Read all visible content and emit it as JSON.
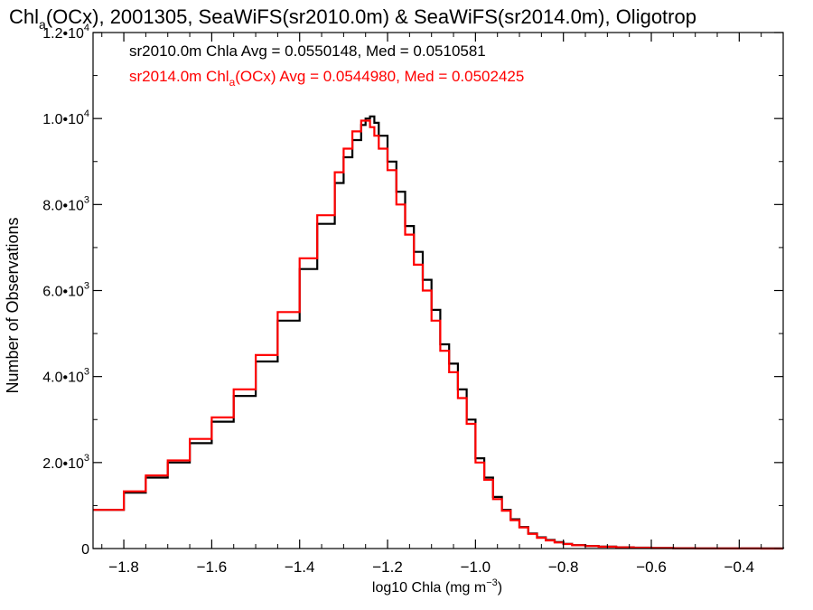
{
  "chart_data": {
    "type": "line",
    "title": {
      "pre": "Chl",
      "sub": "a",
      "post": "(OCx), 2001305, SeaWiFS(sr2010.0m) & SeaWiFS(sr2014.0m), Oligotrop"
    },
    "xlabel": {
      "pre": "log10 Chla (mg m",
      "sup": "−3",
      "post": ")"
    },
    "ylabel": "Number of Observations",
    "xlim": [
      -1.87,
      -0.3
    ],
    "ylim": [
      0,
      12000
    ],
    "x_ticks": [
      -1.8,
      -1.6,
      -1.4,
      -1.2,
      -1.0,
      -0.8,
      -0.6,
      -0.4
    ],
    "x_tick_labels": [
      "−1.8",
      "−1.6",
      "−1.4",
      "−1.2",
      "−1.0",
      "−0.8",
      "−0.6",
      "−0.4"
    ],
    "y_ticks": [
      {
        "value": 0,
        "mant": "0",
        "exp": ""
      },
      {
        "value": 2000,
        "mant": "2.0•10",
        "exp": "3"
      },
      {
        "value": 4000,
        "mant": "4.0•10",
        "exp": "3"
      },
      {
        "value": 6000,
        "mant": "6.0•10",
        "exp": "3"
      },
      {
        "value": 8000,
        "mant": "8.0•10",
        "exp": "3"
      },
      {
        "value": 10000,
        "mant": "1.0•10",
        "exp": "4"
      },
      {
        "value": 12000,
        "mant": "1.2•10",
        "exp": "4"
      }
    ],
    "legend": [
      {
        "pre": "sr2010.0m Chla Avg = 0.0550148, Med = 0.0510581",
        "sub": "",
        "post": "",
        "color": "#000000"
      },
      {
        "pre": "sr2014.0m Chl",
        "sub": "a",
        "post": "(OCx) Avg = 0.0544980, Med = 0.0502425",
        "color": "#ff0000"
      }
    ],
    "legend_position": "top-left",
    "grid": false,
    "series": [
      {
        "color": "#000000",
        "x": [
          -1.87,
          -1.8,
          -1.75,
          -1.7,
          -1.65,
          -1.6,
          -1.55,
          -1.5,
          -1.45,
          -1.4,
          -1.36,
          -1.32,
          -1.3,
          -1.28,
          -1.26,
          -1.25,
          -1.24,
          -1.23,
          -1.22,
          -1.2,
          -1.18,
          -1.16,
          -1.14,
          -1.12,
          -1.1,
          -1.08,
          -1.06,
          -1.04,
          -1.02,
          -1.0,
          -0.98,
          -0.96,
          -0.94,
          -0.92,
          -0.9,
          -0.88,
          -0.86,
          -0.84,
          -0.82,
          -0.8,
          -0.78,
          -0.75,
          -0.72,
          -0.68,
          -0.64,
          -0.6,
          -0.55,
          -0.5,
          -0.45,
          -0.4,
          -0.35,
          -0.3
        ],
        "y": [
          900,
          1300,
          1650,
          2000,
          2450,
          2950,
          3550,
          4350,
          5300,
          6500,
          7550,
          8500,
          9100,
          9500,
          9850,
          10000,
          10050,
          9900,
          9600,
          9000,
          8300,
          7500,
          6900,
          6250,
          5550,
          4750,
          4300,
          3700,
          3000,
          2100,
          1650,
          1200,
          900,
          680,
          500,
          350,
          260,
          200,
          150,
          110,
          80,
          60,
          45,
          30,
          20,
          12,
          8,
          5,
          4,
          3,
          2,
          1
        ]
      },
      {
        "color": "#ff0000",
        "x": [
          -1.87,
          -1.8,
          -1.75,
          -1.7,
          -1.65,
          -1.6,
          -1.55,
          -1.5,
          -1.45,
          -1.4,
          -1.36,
          -1.32,
          -1.3,
          -1.28,
          -1.26,
          -1.25,
          -1.24,
          -1.23,
          -1.22,
          -1.2,
          -1.18,
          -1.16,
          -1.14,
          -1.12,
          -1.1,
          -1.08,
          -1.06,
          -1.04,
          -1.02,
          -1.0,
          -0.98,
          -0.96,
          -0.94,
          -0.92,
          -0.9,
          -0.88,
          -0.86,
          -0.84,
          -0.82,
          -0.8,
          -0.78,
          -0.75,
          -0.72,
          -0.68,
          -0.64,
          -0.6,
          -0.55,
          -0.5,
          -0.45,
          -0.4,
          -0.35,
          -0.3
        ],
        "y": [
          900,
          1330,
          1700,
          2050,
          2550,
          3050,
          3700,
          4500,
          5500,
          6750,
          7750,
          8750,
          9300,
          9700,
          9950,
          9950,
          9800,
          9600,
          9300,
          8800,
          8000,
          7300,
          6600,
          6000,
          5300,
          4600,
          4100,
          3500,
          2900,
          2000,
          1600,
          1150,
          880,
          660,
          490,
          340,
          250,
          190,
          140,
          105,
          78,
          58,
          42,
          28,
          18,
          11,
          7,
          4,
          3,
          2,
          1,
          1
        ]
      }
    ]
  }
}
